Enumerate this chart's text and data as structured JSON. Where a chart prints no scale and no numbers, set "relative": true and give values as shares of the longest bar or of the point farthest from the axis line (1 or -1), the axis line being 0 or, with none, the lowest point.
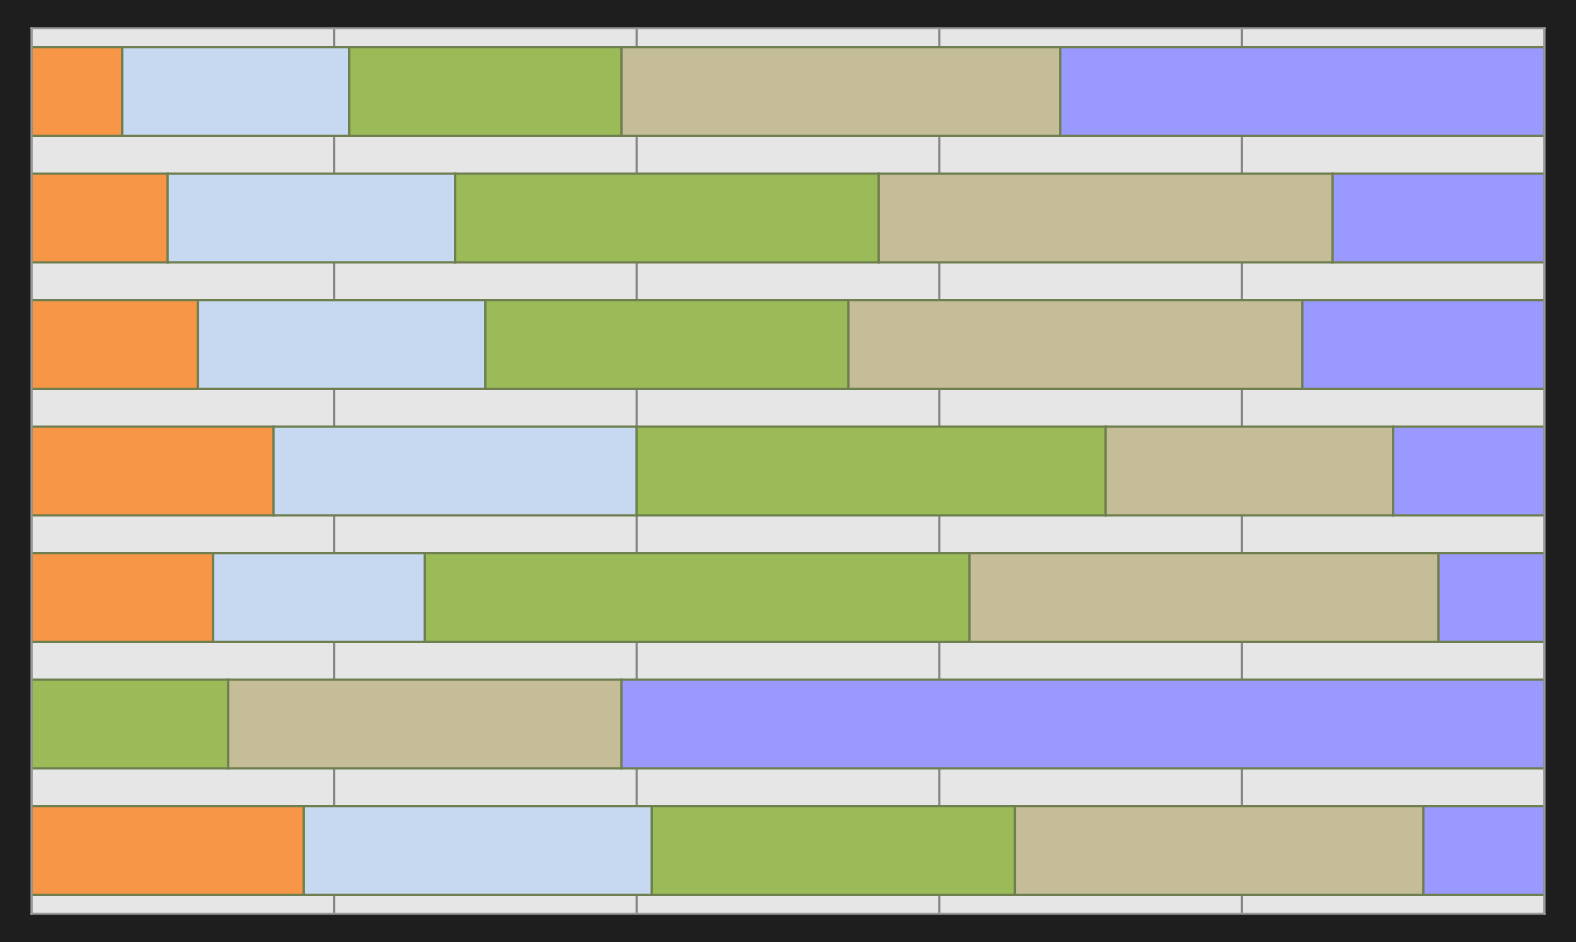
{
  "chart_data": {
    "type": "bar",
    "orientation": "horizontal",
    "stacked": true,
    "relative": true,
    "grid": "x",
    "categories": [
      null,
      null,
      null,
      null,
      null,
      null,
      null
    ],
    "series": [
      {
        "color": "#f79646",
        "values": [
          0.06,
          0.09,
          0.11,
          0.16,
          0.12,
          null,
          0.18
        ]
      },
      {
        "color": "#c6d9f1",
        "values": [
          0.15,
          0.19,
          0.19,
          0.24,
          0.14,
          null,
          0.23
        ]
      },
      {
        "color": "#9bbb59",
        "values": [
          0.18,
          0.28,
          0.24,
          0.31,
          0.36,
          0.13,
          0.24
        ]
      },
      {
        "color": "#c4bd97",
        "values": [
          0.29,
          0.3,
          0.3,
          0.19,
          0.31,
          0.26,
          0.27
        ]
      },
      {
        "color": "#9999ff",
        "values": [
          0.32,
          0.14,
          0.16,
          0.1,
          0.07,
          0.61,
          0.08
        ]
      }
    ]
  }
}
